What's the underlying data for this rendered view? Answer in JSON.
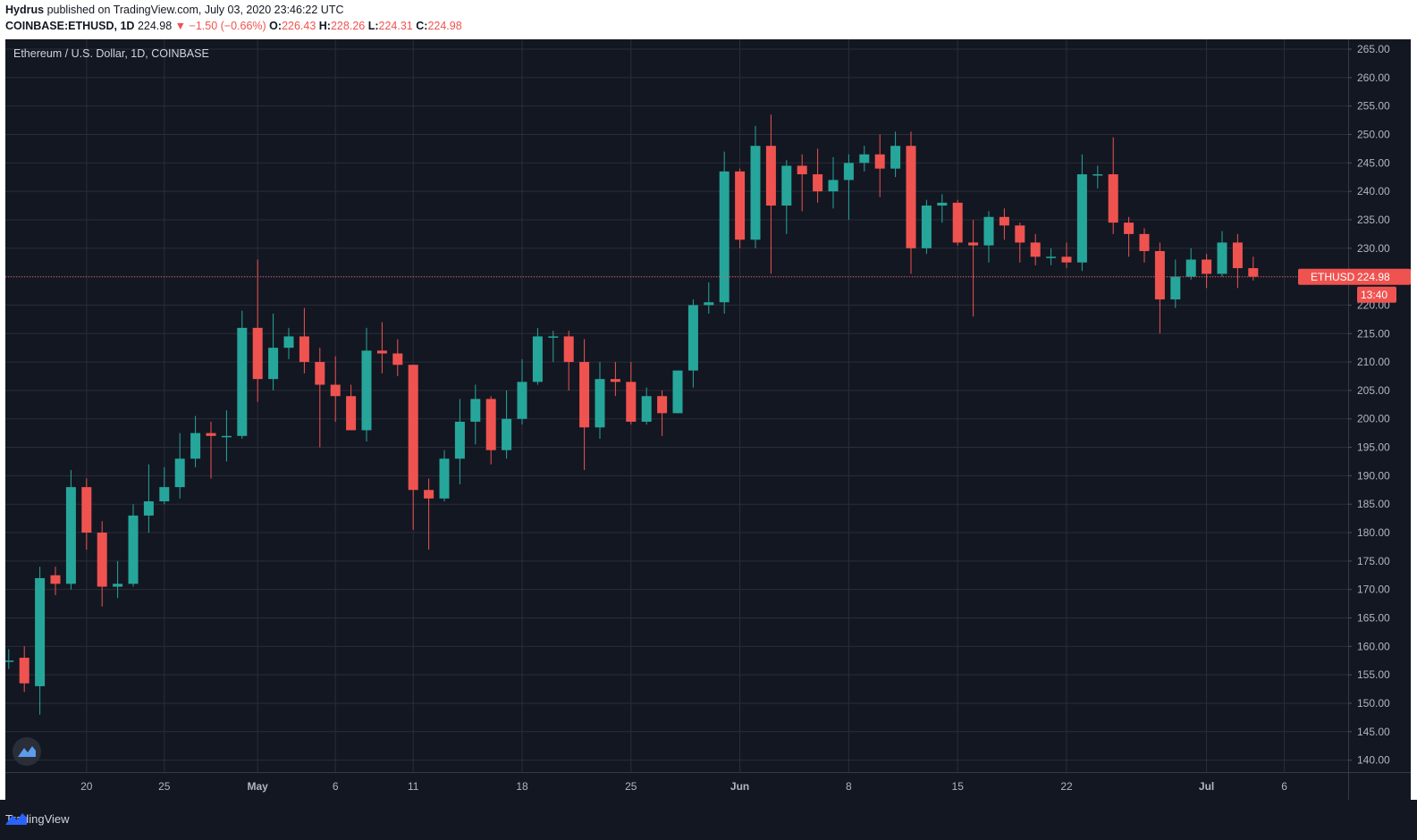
{
  "header": {
    "author": "Hydrus",
    "published_text": "published on TradingView.com, July 03, 2020 23:46:22 UTC",
    "symbol": "COINBASE:ETHUSD, 1D",
    "last": "224.98",
    "change": "▼ −1.50 (−0.66%)",
    "o_label": "O:",
    "o_val": "226.43",
    "h_label": "H:",
    "h_val": "228.26",
    "l_label": "L:",
    "l_val": "224.31",
    "c_label": "C:",
    "c_val": "224.98"
  },
  "footer": {
    "brand": "TradingView",
    "logo_icon": "tradingview-logo-icon"
  },
  "colors": {
    "up": "#26a69a",
    "down": "#ef5350",
    "bg": "#131722",
    "grid": "#2a2e39",
    "text": "#b2b5be"
  },
  "chart_data": {
    "type": "candlestick",
    "title": "Ethereum / U.S. Dollar, 1D, COINBASE",
    "symbol_tag": "ETHUSD",
    "last_price": "224.98",
    "countdown": "13:40",
    "ylim": [
      137.5,
      267.5
    ],
    "y_ticks": [
      "140.00",
      "145.00",
      "150.00",
      "155.00",
      "160.00",
      "165.00",
      "170.00",
      "175.00",
      "180.00",
      "185.00",
      "190.00",
      "195.00",
      "200.00",
      "205.00",
      "210.00",
      "215.00",
      "220.00",
      "225.00",
      "230.00",
      "235.00",
      "240.00",
      "245.00",
      "250.00",
      "255.00",
      "260.00",
      "265.00"
    ],
    "x_ticks": [
      {
        "label": "20",
        "day": 5
      },
      {
        "label": "25",
        "day": 10
      },
      {
        "label": "May",
        "day": 16
      },
      {
        "label": "6",
        "day": 21
      },
      {
        "label": "11",
        "day": 26
      },
      {
        "label": "18",
        "day": 33
      },
      {
        "label": "25",
        "day": 40
      },
      {
        "label": "Jun",
        "day": 47
      },
      {
        "label": "8",
        "day": 54
      },
      {
        "label": "15",
        "day": 61
      },
      {
        "label": "22",
        "day": 68
      },
      {
        "label": "Jul",
        "day": 77
      },
      {
        "label": "6",
        "day": 82
      }
    ],
    "candles": [
      [
        157.5,
        157.5,
        159.5,
        156.0
      ],
      [
        158.0,
        153.5,
        160.0,
        152.0
      ],
      [
        153.0,
        172.0,
        174.0,
        148.0
      ],
      [
        172.5,
        171.0,
        174.0,
        169.0
      ],
      [
        171.0,
        188.0,
        191.0,
        170.0
      ],
      [
        188.0,
        180.0,
        189.5,
        177.0
      ],
      [
        180.0,
        170.5,
        182.0,
        167.0
      ],
      [
        170.5,
        171.0,
        175.0,
        168.5
      ],
      [
        171.0,
        183.0,
        185.0,
        170.5
      ],
      [
        183.0,
        185.5,
        192.0,
        180.0
      ],
      [
        185.5,
        188.0,
        191.5,
        185.0
      ],
      [
        188.0,
        193.0,
        197.5,
        186.0
      ],
      [
        193.0,
        197.5,
        200.5,
        191.5
      ],
      [
        197.5,
        197.0,
        199.5,
        189.5
      ],
      [
        197.0,
        197.0,
        201.5,
        192.5
      ],
      [
        197.0,
        216.0,
        219.0,
        196.5
      ],
      [
        216.0,
        207.0,
        228.0,
        203.0
      ],
      [
        207.0,
        212.5,
        218.5,
        205.0
      ],
      [
        212.5,
        214.5,
        216.0,
        210.5
      ],
      [
        214.5,
        210.0,
        219.5,
        208.0
      ],
      [
        210.0,
        206.0,
        212.5,
        195.0
      ],
      [
        206.0,
        204.0,
        211.0,
        199.5
      ],
      [
        204.0,
        198.0,
        206.0,
        198.0
      ],
      [
        198.0,
        212.0,
        216.0,
        196.0
      ],
      [
        212.0,
        211.5,
        217.0,
        208.0
      ],
      [
        211.5,
        209.5,
        214.0,
        207.5
      ],
      [
        209.5,
        187.5,
        209.5,
        180.5
      ],
      [
        187.5,
        186.0,
        189.5,
        177.0
      ],
      [
        186.0,
        193.0,
        194.5,
        185.5
      ],
      [
        193.0,
        199.5,
        203.5,
        188.5
      ],
      [
        199.5,
        203.5,
        206.0,
        195.5
      ],
      [
        203.5,
        194.5,
        204.0,
        192.0
      ],
      [
        194.5,
        200.0,
        205.0,
        193.0
      ],
      [
        200.0,
        206.5,
        210.5,
        199.0
      ],
      [
        206.5,
        214.5,
        216.0,
        206.0
      ],
      [
        214.5,
        214.5,
        215.5,
        210.0
      ],
      [
        214.5,
        210.0,
        215.5,
        205.0
      ],
      [
        210.0,
        198.5,
        214.0,
        191.0
      ],
      [
        198.5,
        207.0,
        210.0,
        196.5
      ],
      [
        207.0,
        206.5,
        210.0,
        204.0
      ],
      [
        206.5,
        199.5,
        210.0,
        199.0
      ],
      [
        199.5,
        204.0,
        205.5,
        199.0
      ],
      [
        204.0,
        201.0,
        205.0,
        197.0
      ],
      [
        201.0,
        208.5,
        208.5,
        201.0
      ],
      [
        208.5,
        220.0,
        221.0,
        205.5
      ],
      [
        220.0,
        220.5,
        224.0,
        218.5
      ],
      [
        220.5,
        243.5,
        247.0,
        218.5
      ],
      [
        243.5,
        231.5,
        244.0,
        230.0
      ],
      [
        231.5,
        248.0,
        251.5,
        230.0
      ],
      [
        248.0,
        237.5,
        253.5,
        225.5
      ],
      [
        237.5,
        244.5,
        245.5,
        232.5
      ],
      [
        244.5,
        243.0,
        246.5,
        236.5
      ],
      [
        243.0,
        240.0,
        247.5,
        238.0
      ],
      [
        240.0,
        242.0,
        246.0,
        237.0
      ],
      [
        242.0,
        245.0,
        246.5,
        235.0
      ],
      [
        245.0,
        246.5,
        248.0,
        243.5
      ],
      [
        246.5,
        244.0,
        250.0,
        239.0
      ],
      [
        244.0,
        248.0,
        250.5,
        242.5
      ],
      [
        248.0,
        230.0,
        250.5,
        225.5
      ],
      [
        230.0,
        237.5,
        238.5,
        229.0
      ],
      [
        237.5,
        238.0,
        239.5,
        234.5
      ],
      [
        238.0,
        231.0,
        238.5,
        230.5
      ],
      [
        231.0,
        230.5,
        235.0,
        218.0
      ],
      [
        230.5,
        235.5,
        236.5,
        227.5
      ],
      [
        235.5,
        234.0,
        237.0,
        231.5
      ],
      [
        234.0,
        231.0,
        234.5,
        227.5
      ],
      [
        231.0,
        228.5,
        232.5,
        227.0
      ],
      [
        228.5,
        228.5,
        230.0,
        227.0
      ],
      [
        228.5,
        227.5,
        231.0,
        226.5
      ],
      [
        227.5,
        243.0,
        246.5,
        226.0
      ],
      [
        243.0,
        243.0,
        244.5,
        240.5
      ],
      [
        243.0,
        234.5,
        249.5,
        232.5
      ],
      [
        234.5,
        232.5,
        235.5,
        228.5
      ],
      [
        232.5,
        229.5,
        233.5,
        227.5
      ],
      [
        229.5,
        221.0,
        231.0,
        215.0
      ],
      [
        221.0,
        225.0,
        228.0,
        219.5
      ],
      [
        225.0,
        228.0,
        230.0,
        224.5
      ],
      [
        228.0,
        225.5,
        229.0,
        223.0
      ],
      [
        225.5,
        231.0,
        233.0,
        225.0
      ],
      [
        231.0,
        226.5,
        232.5,
        223.0
      ],
      [
        226.5,
        225.0,
        228.5,
        224.3
      ]
    ]
  }
}
